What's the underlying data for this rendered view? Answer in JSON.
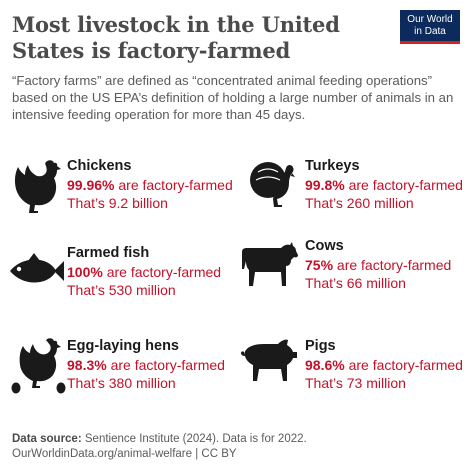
{
  "title": "Most livestock in the United States is factory-farmed",
  "subtitle": "“Factory farms” are defined as “concentrated animal feeding operations” based on the US EPA’s definition of holding a large number of animals in an intensive feeding operation for more than 45 days.",
  "logo": {
    "line1": "Our World",
    "line2": "in Data"
  },
  "chart_data": {
    "type": "table",
    "title": "Most livestock in the United States is factory-farmed",
    "pct_suffix": "are factory-farmed",
    "items": [
      {
        "name": "Chickens",
        "percent": "99.96%",
        "count_text": "That’s 9.2 billion",
        "icon": "chicken-icon"
      },
      {
        "name": "Turkeys",
        "percent": "99.8%",
        "count_text": "That’s 260 million",
        "icon": "turkey-icon"
      },
      {
        "name": "Farmed fish",
        "percent": "100%",
        "count_text": "That’s 530 million",
        "icon": "fish-icon"
      },
      {
        "name": "Cows",
        "percent": "75%",
        "count_text": "That’s 66 million",
        "icon": "cow-icon"
      },
      {
        "name": "Egg-laying hens",
        "percent": "98.3%",
        "count_text": "That’s 380 million",
        "icon": "hen-with-eggs-icon"
      },
      {
        "name": "Pigs",
        "percent": "98.6%",
        "count_text": "That’s 73 million",
        "icon": "pig-icon"
      }
    ]
  },
  "footer": {
    "source_label": "Data source:",
    "source_text": "Sentience Institute (2024). Data is for 2022.",
    "url_text": "OurWorldinData.org/animal-welfare | CC BY"
  },
  "colors": {
    "accent": "#c3122a",
    "title": "#4b4b4b",
    "logo_bg": "#0d2a5c",
    "logo_bar": "#ce261e"
  }
}
